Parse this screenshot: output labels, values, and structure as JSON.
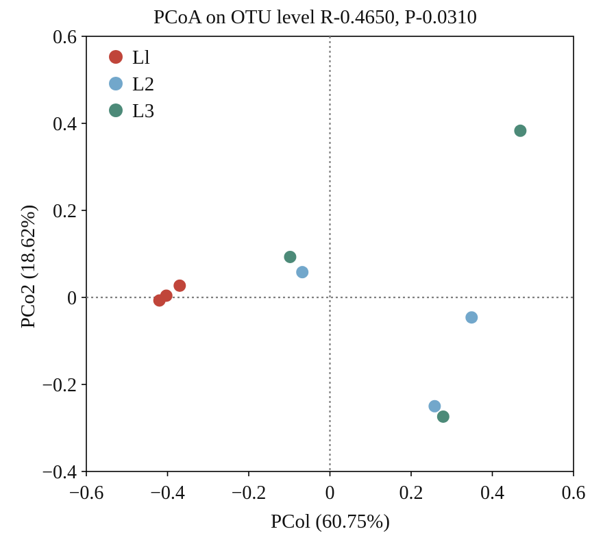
{
  "chart_data": {
    "type": "scatter",
    "title": "PCoA on OTU level R-0.4650, P-0.0310",
    "xlabel": "PCol (60.75%)",
    "ylabel": "PCo2 (18.62%)",
    "xlim": [
      -0.6,
      0.6
    ],
    "ylim": [
      -0.4,
      0.6
    ],
    "xticks": [
      -0.6,
      -0.4,
      -0.2,
      0,
      0.2,
      0.4,
      0.6
    ],
    "yticks": [
      -0.4,
      -0.2,
      0,
      0.2,
      0.4,
      0.6
    ],
    "xtick_labels": [
      "−0.6",
      "−0.4",
      "−0.2",
      "0",
      "0.2",
      "0.4",
      "0.6"
    ],
    "ytick_labels": [
      "−0.4",
      "−0.2",
      "0",
      "0.2",
      "0.4",
      "0.6"
    ],
    "reference_lines": {
      "x": 0,
      "y": 0,
      "style": "dotted"
    },
    "grid": false,
    "legend_position": "top-left",
    "series": [
      {
        "name": "L1",
        "legend_label": "Ll",
        "color": "#c0453a",
        "points": [
          {
            "x": -0.42,
            "y": -0.007
          },
          {
            "x": -0.403,
            "y": 0.004
          },
          {
            "x": -0.37,
            "y": 0.027
          }
        ]
      },
      {
        "name": "L2",
        "legend_label": "L2",
        "color": "#72a7cb",
        "points": [
          {
            "x": -0.068,
            "y": 0.058
          },
          {
            "x": 0.349,
            "y": -0.046
          },
          {
            "x": 0.258,
            "y": -0.25
          }
        ]
      },
      {
        "name": "L3",
        "legend_label": "L3",
        "color": "#4c8a78",
        "points": [
          {
            "x": -0.098,
            "y": 0.093
          },
          {
            "x": 0.469,
            "y": 0.383
          },
          {
            "x": 0.279,
            "y": -0.274
          }
        ]
      }
    ]
  }
}
